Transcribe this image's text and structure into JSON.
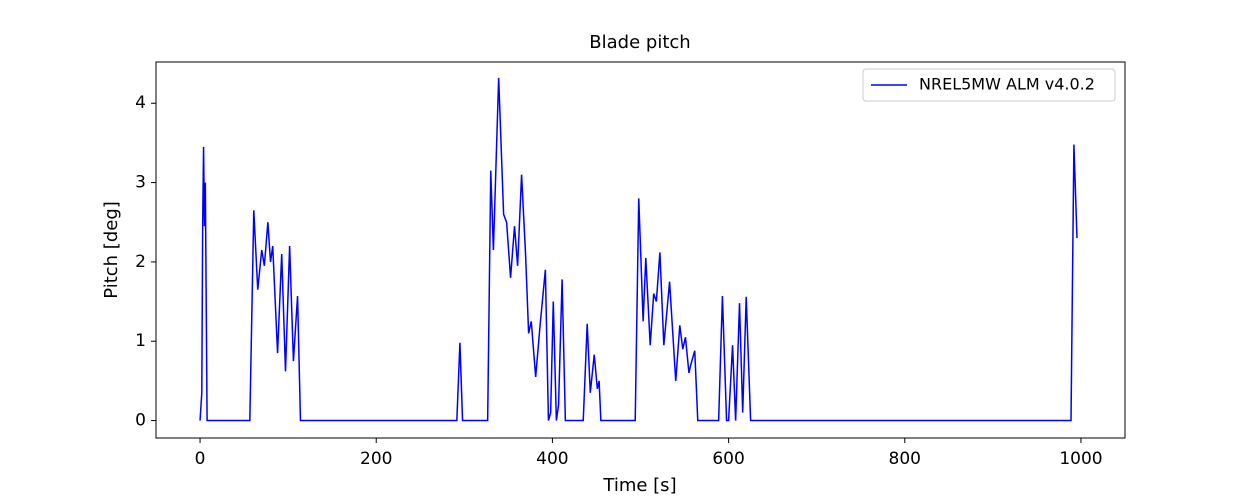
{
  "chart_data": {
    "type": "line",
    "title": "Blade pitch",
    "xlabel": "Time [s]",
    "ylabel": "Pitch [deg]",
    "x": [
      0,
      2,
      3,
      4,
      5,
      6,
      8,
      56.5,
      61,
      65.5,
      70,
      73,
      77,
      80,
      82.5,
      88,
      92.7,
      97,
      101.7,
      106,
      110.7,
      114,
      291.5,
      295,
      298,
      326.5,
      330,
      333,
      339,
      344.6,
      348,
      352.5,
      357,
      360.5,
      365,
      369.5,
      373,
      376,
      381,
      386,
      392,
      395.5,
      398,
      401,
      404.5,
      407,
      411,
      414.7,
      435,
      439.5,
      443,
      447.5,
      451,
      453,
      455,
      494,
      498,
      503,
      506,
      511,
      515,
      518,
      522,
      526.5,
      533,
      540,
      544.6,
      548,
      551,
      555,
      557,
      561.6,
      565,
      588.7,
      593,
      597.7,
      600,
      604.5,
      608,
      612.4,
      616,
      620,
      625,
      988.7,
      992,
      995.5
    ],
    "series": [
      {
        "name": "NREL5MW ALM v4.0.2",
        "color": "#0000ff",
        "values": [
          0,
          0.35,
          2.5,
          3.45,
          2.45,
          3.0,
          0,
          0,
          2.65,
          1.65,
          2.15,
          1.95,
          2.5,
          2.0,
          2.2,
          0.85,
          2.1,
          0.62,
          2.2,
          0.75,
          1.57,
          0,
          0,
          0.98,
          0,
          0,
          3.15,
          2.15,
          4.32,
          2.6,
          2.5,
          1.8,
          2.45,
          1.95,
          3.1,
          2.1,
          1.1,
          1.25,
          0.55,
          1.2,
          1.9,
          0,
          0.1,
          1.5,
          0,
          0.2,
          1.78,
          0,
          0,
          1.22,
          0.35,
          0.83,
          0.4,
          0.5,
          0,
          0,
          2.8,
          1.25,
          2.05,
          0.95,
          1.6,
          1.5,
          2.12,
          0.95,
          1.75,
          0.5,
          1.2,
          0.9,
          1.05,
          0.6,
          0.7,
          0.88,
          0,
          0,
          1.57,
          0,
          0,
          0.95,
          0,
          1.48,
          0.1,
          1.56,
          0,
          0,
          3.48,
          2.3
        ]
      }
    ],
    "xlim": [
      -50,
      1050
    ],
    "ylim": [
      -0.22,
      4.52
    ],
    "xticks": [
      0,
      200,
      400,
      600,
      800,
      1000
    ],
    "yticks": [
      0,
      1,
      2,
      3,
      4
    ],
    "legend": "upper right"
  }
}
